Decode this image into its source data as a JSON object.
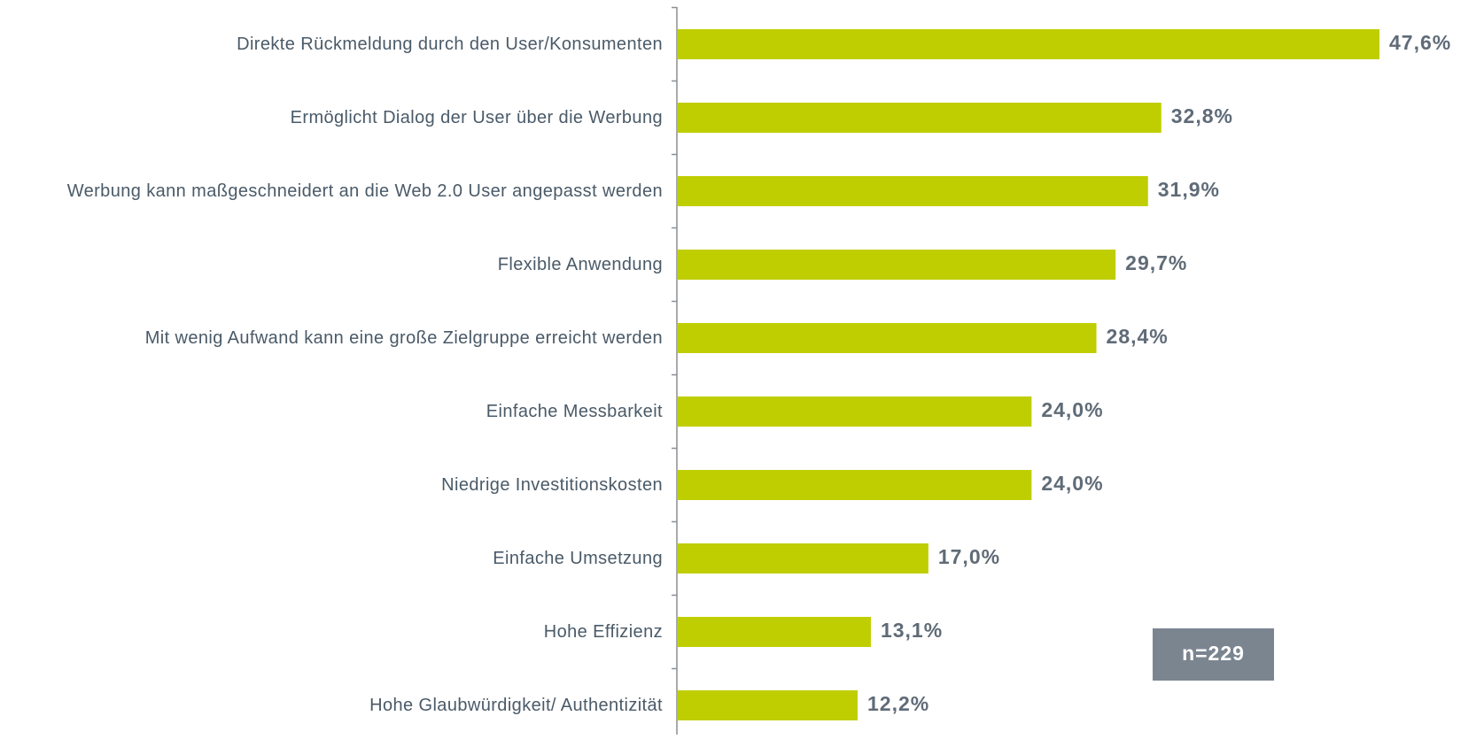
{
  "chart_data": {
    "type": "bar",
    "orientation": "horizontal",
    "categories": [
      "Direkte Rückmeldung durch den User/Konsumenten",
      "Ermöglicht Dialog der User über die Werbung",
      "Werbung kann maßgeschneidert an die Web 2.0 User angepasst werden",
      "Flexible Anwendung",
      "Mit wenig Aufwand kann eine große Zielgruppe erreicht werden",
      "Einfache Messbarkeit",
      "Niedrige Investitionskosten",
      "Einfache Umsetzung",
      "Hohe Effizienz",
      "Hohe Glaubwürdigkeit/ Authentizität"
    ],
    "values": [
      47.6,
      32.8,
      31.9,
      29.7,
      28.4,
      24.0,
      24.0,
      17.0,
      13.1,
      12.2
    ],
    "value_labels": [
      "47,6%",
      "32,8%",
      "31,9%",
      "29,7%",
      "28,4%",
      "24,0%",
      "24,0%",
      "17,0%",
      "13,1%",
      "12,2%"
    ],
    "color": "#bfce00",
    "annotation": "n=229"
  }
}
